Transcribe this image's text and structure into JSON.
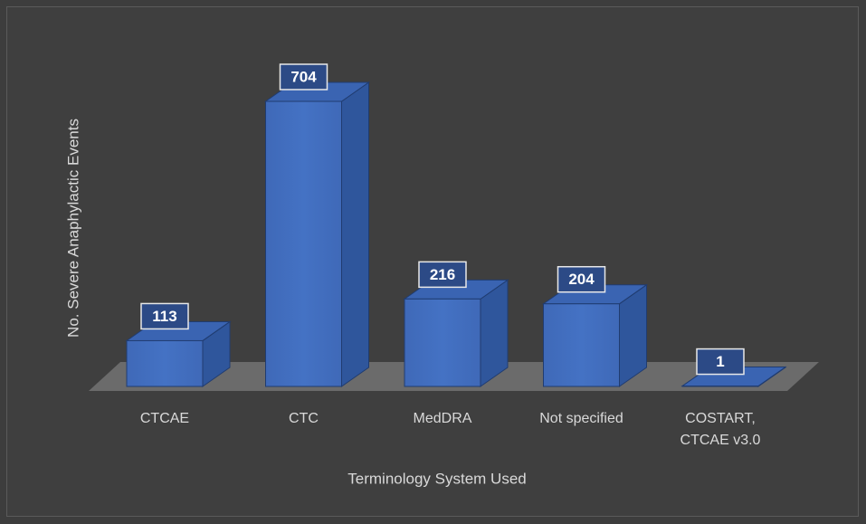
{
  "chart_data": {
    "type": "bar3d",
    "categories": [
      "CTCAE",
      "CTC",
      "MedDRA",
      "Not specified",
      "COSTART, CTCAE v3.0"
    ],
    "values": [
      113,
      704,
      216,
      204,
      1
    ],
    "color": "#4472c4",
    "x_label": "Terminology System Used",
    "y_label": "No. Severe Anaphylactic Events"
  }
}
